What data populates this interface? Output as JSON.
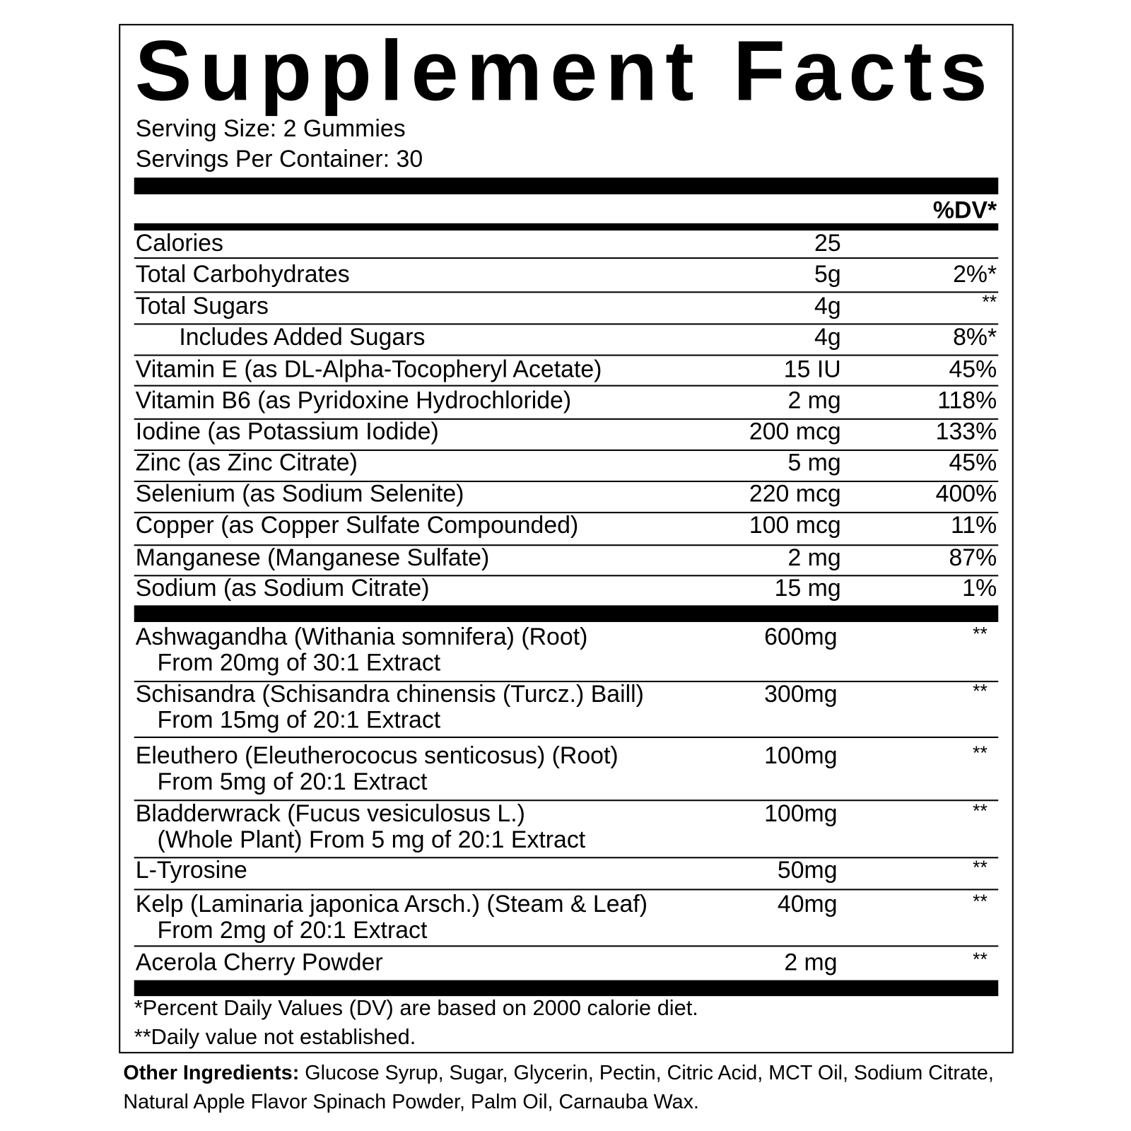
{
  "header": {
    "title": "Supplement Facts",
    "serving_size": "Serving Size: 2 Gummies",
    "servings_per_container": "Servings Per Container: 30",
    "dv_header": "%DV*"
  },
  "nutrients": [
    {
      "name": "Calories",
      "amount": "25"
    },
    {
      "name": "Total Carbohydrates",
      "amount": "5g",
      "dv": "2%*"
    },
    {
      "name": "Total Sugars",
      "amount": "4g",
      "dv": "**"
    },
    {
      "name": "Includes Added Sugars",
      "amount": "4g",
      "dv": "8%*"
    },
    {
      "name": "Vitamin E (as DL-Alpha-Tocopheryl Acetate)",
      "amount": "15 IU",
      "dv": "45%"
    },
    {
      "name": "Vitamin B6 (as Pyridoxine Hydrochloride)",
      "amount": "2 mg",
      "dv": "118%"
    },
    {
      "name": "Iodine (as Potassium Iodide)",
      "amount": "200 mcg",
      "dv": "133%"
    },
    {
      "name": "Zinc (as Zinc Citrate)",
      "amount": "5 mg",
      "dv": "45%"
    },
    {
      "name": "Selenium (as Sodium Selenite)",
      "amount": "220 mcg",
      "dv": "400%"
    },
    {
      "name": "Copper (as Copper Sulfate Compounded)",
      "amount": "100 mcg",
      "dv": "11%"
    },
    {
      "name": "Manganese (Manganese Sulfate)",
      "amount": "2 mg",
      "dv": "87%"
    },
    {
      "name": "Sodium (as Sodium Citrate)",
      "amount": "15 mg",
      "dv": "1%"
    }
  ],
  "botanicals": [
    {
      "name": "Ashwagandha (Withania somnifera) (Root)",
      "detail": "From 20mg of 30:1 Extract",
      "amount": "600mg",
      "dv": "**"
    },
    {
      "name": "Schisandra (Schisandra chinensis (Turcz.) Baill)",
      "detail": "From 15mg of 20:1 Extract",
      "amount": "300mg",
      "dv": "**"
    },
    {
      "name": "Eleuthero (Eleutherococus senticosus) (Root)",
      "detail": "From 5mg of 20:1 Extract",
      "amount": "100mg",
      "dv": "**"
    },
    {
      "name": "Bladderwrack (Fucus vesiculosus L.)",
      "detail": "(Whole Plant) From 5 mg of 20:1 Extract",
      "amount": "100mg",
      "dv": "**"
    },
    {
      "name": "L-Tyrosine",
      "amount": "50mg",
      "dv": "**"
    },
    {
      "name": "Kelp (Laminaria japonica Arsch.) (Steam & Leaf)",
      "detail": "From 2mg of 20:1 Extract",
      "amount": "40mg",
      "dv": "**"
    },
    {
      "name": "Acerola Cherry Powder",
      "amount": "2 mg",
      "dv": "**"
    }
  ],
  "footnotes": [
    "*Percent Daily Values (DV) are based on 2000 calorie diet.",
    "**Daily value not established."
  ],
  "other_ingredients": {
    "label": "Other Ingredients:",
    "text": "Glucose Syrup, Sugar, Glycerin, Pectin, Citric Acid, MCT Oil, Sodium Citrate, Natural Apple Flavor Spinach Powder, Palm Oil, Carnauba Wax."
  }
}
